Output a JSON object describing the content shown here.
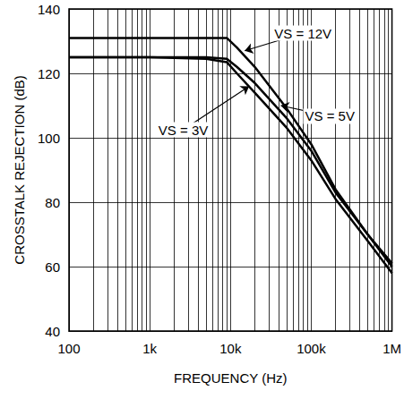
{
  "chart_data": {
    "type": "line",
    "x_label": "FREQUENCY (Hz)",
    "y_label": "CROSSTALK REJECTION (dB)",
    "log": "x",
    "grid": true,
    "xlim": [
      100,
      1000000
    ],
    "xticks": [
      100,
      {
        "value": 1000,
        "label": "1k"
      },
      {
        "value": 10000,
        "label": "10k"
      },
      {
        "value": 100000,
        "label": "100k"
      },
      {
        "value": 1000000,
        "label": "1M"
      }
    ],
    "ylim": [
      40,
      140
    ],
    "yticks": [
      40,
      60,
      80,
      100,
      120,
      140
    ],
    "x": [
      100,
      1000,
      5000,
      9000,
      12000,
      20000,
      50000,
      100000,
      200000,
      500000,
      1000000
    ],
    "series": [
      {
        "name": "VS = 12V",
        "color": "#000000",
        "values": [
          131,
          131,
          131,
          131,
          128,
          122,
          109,
          98,
          84,
          70,
          61
        ]
      },
      {
        "name": "VS = 5V",
        "color": "#000000",
        "values": [
          125,
          125,
          125,
          124.5,
          122,
          117,
          106,
          96,
          83,
          70,
          60
        ]
      },
      {
        "name": "VS = 3V",
        "color": "#000000",
        "values": [
          125,
          125,
          124.5,
          123.5,
          120,
          114,
          103,
          93,
          81,
          68,
          58
        ]
      }
    ],
    "annotations": [
      {
        "text": "VS = 12V",
        "x": 79000,
        "y": 132.5,
        "arrow_x": 15000,
        "arrow_y": 127
      },
      {
        "text": "VS = 5V",
        "x": 170000,
        "y": 106.7,
        "arrow_x": 42000,
        "arrow_y": 110
      },
      {
        "text": "VS = 3V",
        "x": 2600,
        "y": 102.5,
        "arrow_x": 17000,
        "arrow_y": 116
      }
    ]
  }
}
